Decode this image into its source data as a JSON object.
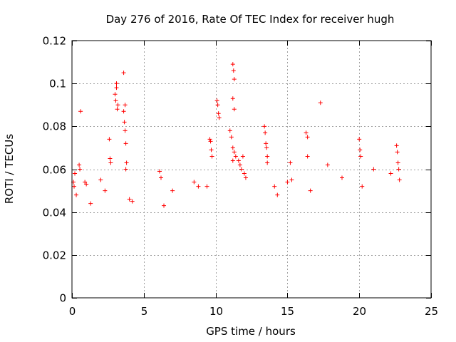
{
  "chart_data": {
    "type": "scatter",
    "title": "Day 276 of 2016, Rate Of TEC Index for receiver hugh",
    "xlabel": "GPS time / hours",
    "ylabel": "ROTI / TECUs",
    "xlim": [
      0,
      25
    ],
    "ylim": [
      0,
      0.12
    ],
    "xticks": [
      0,
      5,
      10,
      15,
      20,
      25
    ],
    "xtick_labels": [
      "0",
      "5",
      "10",
      "15",
      "20",
      "25"
    ],
    "yticks": [
      0,
      0.02,
      0.04,
      0.06,
      0.08,
      0.1,
      0.12
    ],
    "ytick_labels": [
      "0",
      "0.02",
      "0.04",
      "0.06",
      "0.08",
      "0.1",
      "0.12"
    ],
    "grid": true,
    "marker": "plus",
    "color": "#ff0000",
    "series": [
      {
        "name": "ROTI",
        "points": [
          [
            0.1,
            0.054
          ],
          [
            0.15,
            0.052
          ],
          [
            0.2,
            0.058
          ],
          [
            0.3,
            0.048
          ],
          [
            0.5,
            0.062
          ],
          [
            0.55,
            0.06
          ],
          [
            0.6,
            0.087
          ],
          [
            0.9,
            0.054
          ],
          [
            1.0,
            0.053
          ],
          [
            1.3,
            0.044
          ],
          [
            2.0,
            0.055
          ],
          [
            2.3,
            0.05
          ],
          [
            2.6,
            0.074
          ],
          [
            2.65,
            0.065
          ],
          [
            2.7,
            0.063
          ],
          [
            3.0,
            0.095
          ],
          [
            3.05,
            0.092
          ],
          [
            3.1,
            0.098
          ],
          [
            3.15,
            0.088
          ],
          [
            3.2,
            0.09
          ],
          [
            3.1,
            0.1
          ],
          [
            3.6,
            0.105
          ],
          [
            3.6,
            0.087
          ],
          [
            3.65,
            0.082
          ],
          [
            3.7,
            0.09
          ],
          [
            3.7,
            0.078
          ],
          [
            3.75,
            0.072
          ],
          [
            3.8,
            0.063
          ],
          [
            3.75,
            0.06
          ],
          [
            4.0,
            0.046
          ],
          [
            4.2,
            0.045
          ],
          [
            6.1,
            0.059
          ],
          [
            6.2,
            0.056
          ],
          [
            6.4,
            0.043
          ],
          [
            7.0,
            0.05
          ],
          [
            8.5,
            0.054
          ],
          [
            8.8,
            0.052
          ],
          [
            9.4,
            0.052
          ],
          [
            9.6,
            0.074
          ],
          [
            9.65,
            0.073
          ],
          [
            9.7,
            0.069
          ],
          [
            9.75,
            0.066
          ],
          [
            10.1,
            0.092
          ],
          [
            10.15,
            0.09
          ],
          [
            10.2,
            0.086
          ],
          [
            10.25,
            0.084
          ],
          [
            11.2,
            0.109
          ],
          [
            11.25,
            0.106
          ],
          [
            11.3,
            0.102
          ],
          [
            11.2,
            0.093
          ],
          [
            11.3,
            0.088
          ],
          [
            11.0,
            0.078
          ],
          [
            11.1,
            0.075
          ],
          [
            11.2,
            0.07
          ],
          [
            11.3,
            0.068
          ],
          [
            11.4,
            0.066
          ],
          [
            11.2,
            0.064
          ],
          [
            11.6,
            0.064
          ],
          [
            11.7,
            0.062
          ],
          [
            11.8,
            0.06
          ],
          [
            11.9,
            0.066
          ],
          [
            12.0,
            0.058
          ],
          [
            12.1,
            0.056
          ],
          [
            13.4,
            0.08
          ],
          [
            13.45,
            0.077
          ],
          [
            13.5,
            0.072
          ],
          [
            13.55,
            0.07
          ],
          [
            13.6,
            0.066
          ],
          [
            13.6,
            0.063
          ],
          [
            14.1,
            0.052
          ],
          [
            14.3,
            0.048
          ],
          [
            15.0,
            0.054
          ],
          [
            15.2,
            0.063
          ],
          [
            15.3,
            0.055
          ],
          [
            16.3,
            0.077
          ],
          [
            16.4,
            0.075
          ],
          [
            16.4,
            0.066
          ],
          [
            16.6,
            0.05
          ],
          [
            17.3,
            0.091
          ],
          [
            17.8,
            0.062
          ],
          [
            18.8,
            0.056
          ],
          [
            20.0,
            0.074
          ],
          [
            20.05,
            0.069
          ],
          [
            20.1,
            0.066
          ],
          [
            20.2,
            0.052
          ],
          [
            21.0,
            0.06
          ],
          [
            22.2,
            0.058
          ],
          [
            22.6,
            0.071
          ],
          [
            22.65,
            0.068
          ],
          [
            22.7,
            0.063
          ],
          [
            22.75,
            0.06
          ],
          [
            22.8,
            0.055
          ]
        ]
      }
    ]
  }
}
